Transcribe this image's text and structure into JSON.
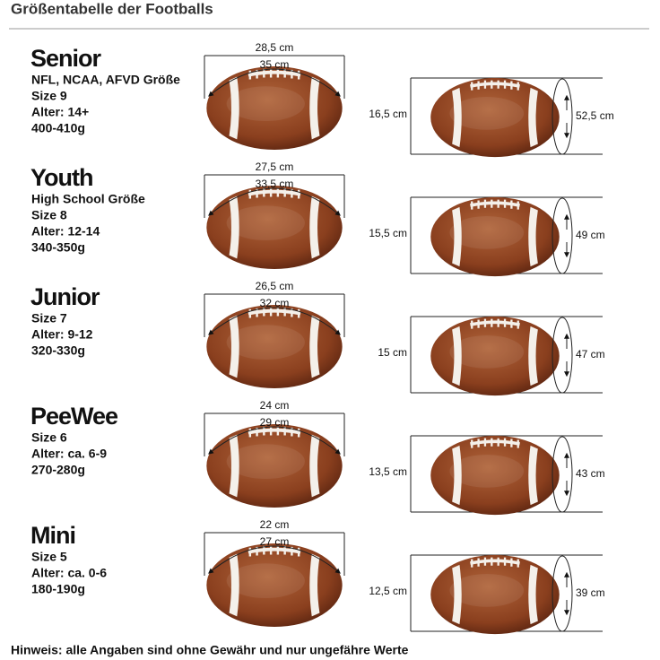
{
  "header": {
    "title": "Größentabelle der Footballs"
  },
  "rows": [
    {
      "name": "Senior",
      "lines": [
        "NFL, NCAA, AFVD Größe",
        "Size 9",
        "Alter: 14+",
        "400-410g"
      ],
      "length": "28,5 cm",
      "circumference": "35 cm",
      "height": "16,5 cm",
      "girth": "52,5 cm"
    },
    {
      "name": "Youth",
      "lines": [
        "High School Größe",
        "Size 8",
        "Alter: 12-14",
        "340-350g"
      ],
      "length": "27,5 cm",
      "circumference": "33,5 cm",
      "height": "15,5 cm",
      "girth": "49 cm"
    },
    {
      "name": "Junior",
      "lines": [
        "Size 7",
        "Alter: 9-12",
        "320-330g"
      ],
      "length": "26,5 cm",
      "circumference": "32 cm",
      "height": "15 cm",
      "girth": "47 cm"
    },
    {
      "name": "PeeWee",
      "lines": [
        "Size 6",
        "Alter: ca. 6-9",
        "270-280g"
      ],
      "length": "24 cm",
      "circumference": "29 cm",
      "height": "13,5 cm",
      "girth": "43 cm"
    },
    {
      "name": "Mini",
      "lines": [
        "Size 5",
        "Alter: ca. 0-6",
        "180-190g"
      ],
      "length": "22 cm",
      "circumference": "27 cm",
      "height": "12,5 cm",
      "girth": "39 cm"
    }
  ],
  "footer": {
    "note": "Hinweis: alle Angaben sind ohne Gewähr und nur ungefähre Werte"
  }
}
